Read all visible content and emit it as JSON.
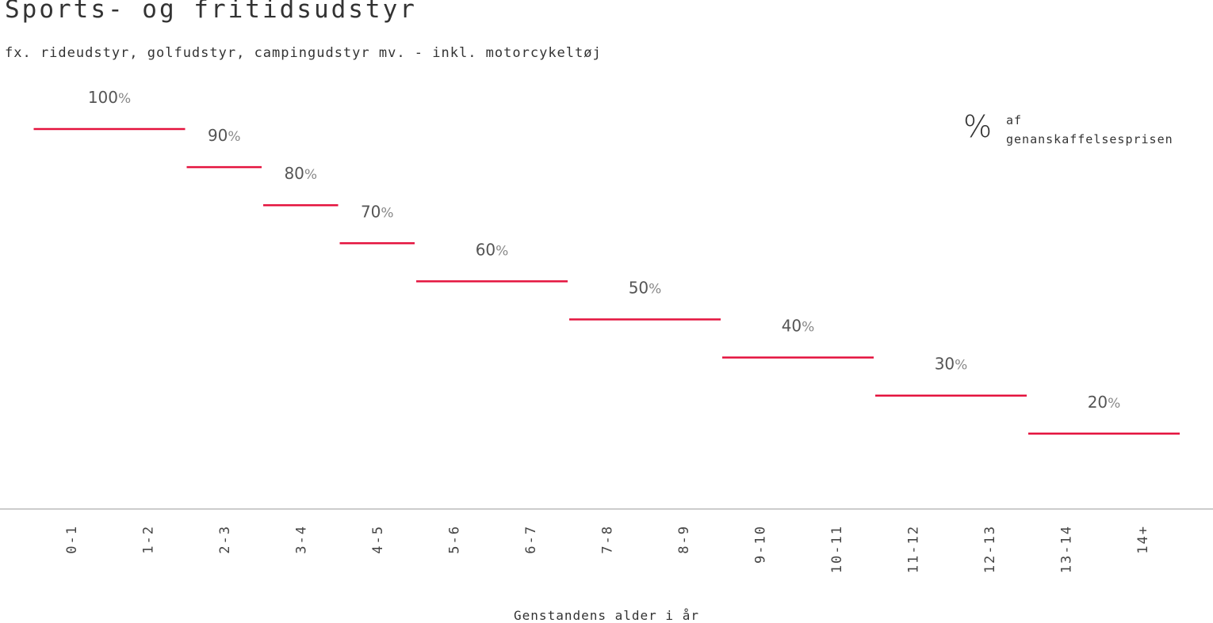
{
  "title": "Sports- og fritidsudstyr",
  "subtitle": "fx. rideudstyr, golfudstyr, campingudstyr mv. - inkl. motorcykeltøj",
  "unit_legend": {
    "symbol": "%",
    "text": "af\ngenanskaffelsesprisen"
  },
  "colors": {
    "step_line": "#e4133e",
    "axis": "#bbbbbb",
    "text": "#333333"
  },
  "chart_data": {
    "type": "line",
    "subtype": "step",
    "xlabel": "Genstandens alder i år",
    "ylabel": "",
    "x_categories": [
      "0-1",
      "1-2",
      "2-3",
      "3-4",
      "4-5",
      "5-6",
      "6-7",
      "7-8",
      "8-9",
      "9-10",
      "10-11",
      "11-12",
      "12-13",
      "13-14",
      "14+"
    ],
    "ylim": [
      0,
      100
    ],
    "value_suffix": "%",
    "segments": [
      {
        "from": 0,
        "to": 1,
        "value": 100,
        "label": "100"
      },
      {
        "from": 2,
        "to": 2,
        "value": 90,
        "label": "90"
      },
      {
        "from": 3,
        "to": 3,
        "value": 80,
        "label": "80"
      },
      {
        "from": 4,
        "to": 4,
        "value": 70,
        "label": "70"
      },
      {
        "from": 5,
        "to": 6,
        "value": 60,
        "label": "60"
      },
      {
        "from": 7,
        "to": 8,
        "value": 50,
        "label": "50"
      },
      {
        "from": 9,
        "to": 10,
        "value": 40,
        "label": "40"
      },
      {
        "from": 11,
        "to": 12,
        "value": 30,
        "label": "30"
      },
      {
        "from": 13,
        "to": 14,
        "value": 20,
        "label": "20"
      }
    ]
  }
}
